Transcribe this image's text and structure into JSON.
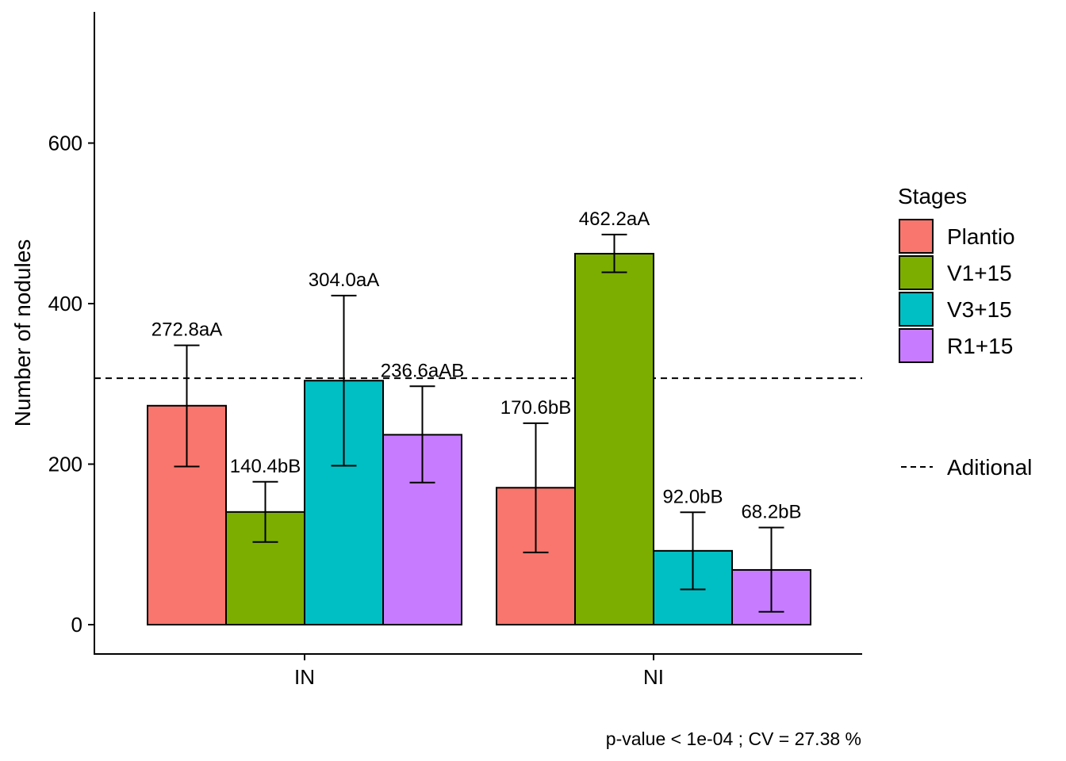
{
  "chart_data": {
    "type": "bar",
    "ylabel": "Number of nodules",
    "xlabel": "",
    "ylim": [
      -36,
      760
    ],
    "yticks": [
      0,
      200,
      400,
      600
    ],
    "categories": [
      "IN",
      "NI"
    ],
    "series": [
      {
        "name": "Plantio",
        "color": "#F8766D",
        "values": [
          272.8,
          170.6
        ],
        "err_low": [
          197,
          90
        ],
        "err_high": [
          348,
          251
        ],
        "labels": [
          "272.8aA",
          "170.6bB"
        ]
      },
      {
        "name": "V1+15",
        "color": "#7CAE00",
        "values": [
          140.4,
          462.2
        ],
        "err_low": [
          103,
          439
        ],
        "err_high": [
          178,
          486
        ],
        "labels": [
          "140.4bB",
          "462.2aA"
        ]
      },
      {
        "name": "V3+15",
        "color": "#00BFC4",
        "values": [
          304.0,
          92.0
        ],
        "err_low": [
          198,
          44
        ],
        "err_high": [
          410,
          140
        ],
        "labels": [
          "304.0aA",
          "92.0bB"
        ]
      },
      {
        "name": "R1+15",
        "color": "#C77CFF",
        "values": [
          236.6,
          68.2
        ],
        "err_low": [
          177,
          16
        ],
        "err_high": [
          297,
          121
        ],
        "labels": [
          "236.6aAB",
          "68.2bB"
        ]
      }
    ],
    "reference_line": {
      "value": 307,
      "style": "dashed",
      "legend_label": "Aditional"
    },
    "legend": {
      "title": "Stages",
      "placement": "right"
    },
    "caption": "p-value  < 1e-04 ; CV =  27.38 %",
    "grid": false
  }
}
